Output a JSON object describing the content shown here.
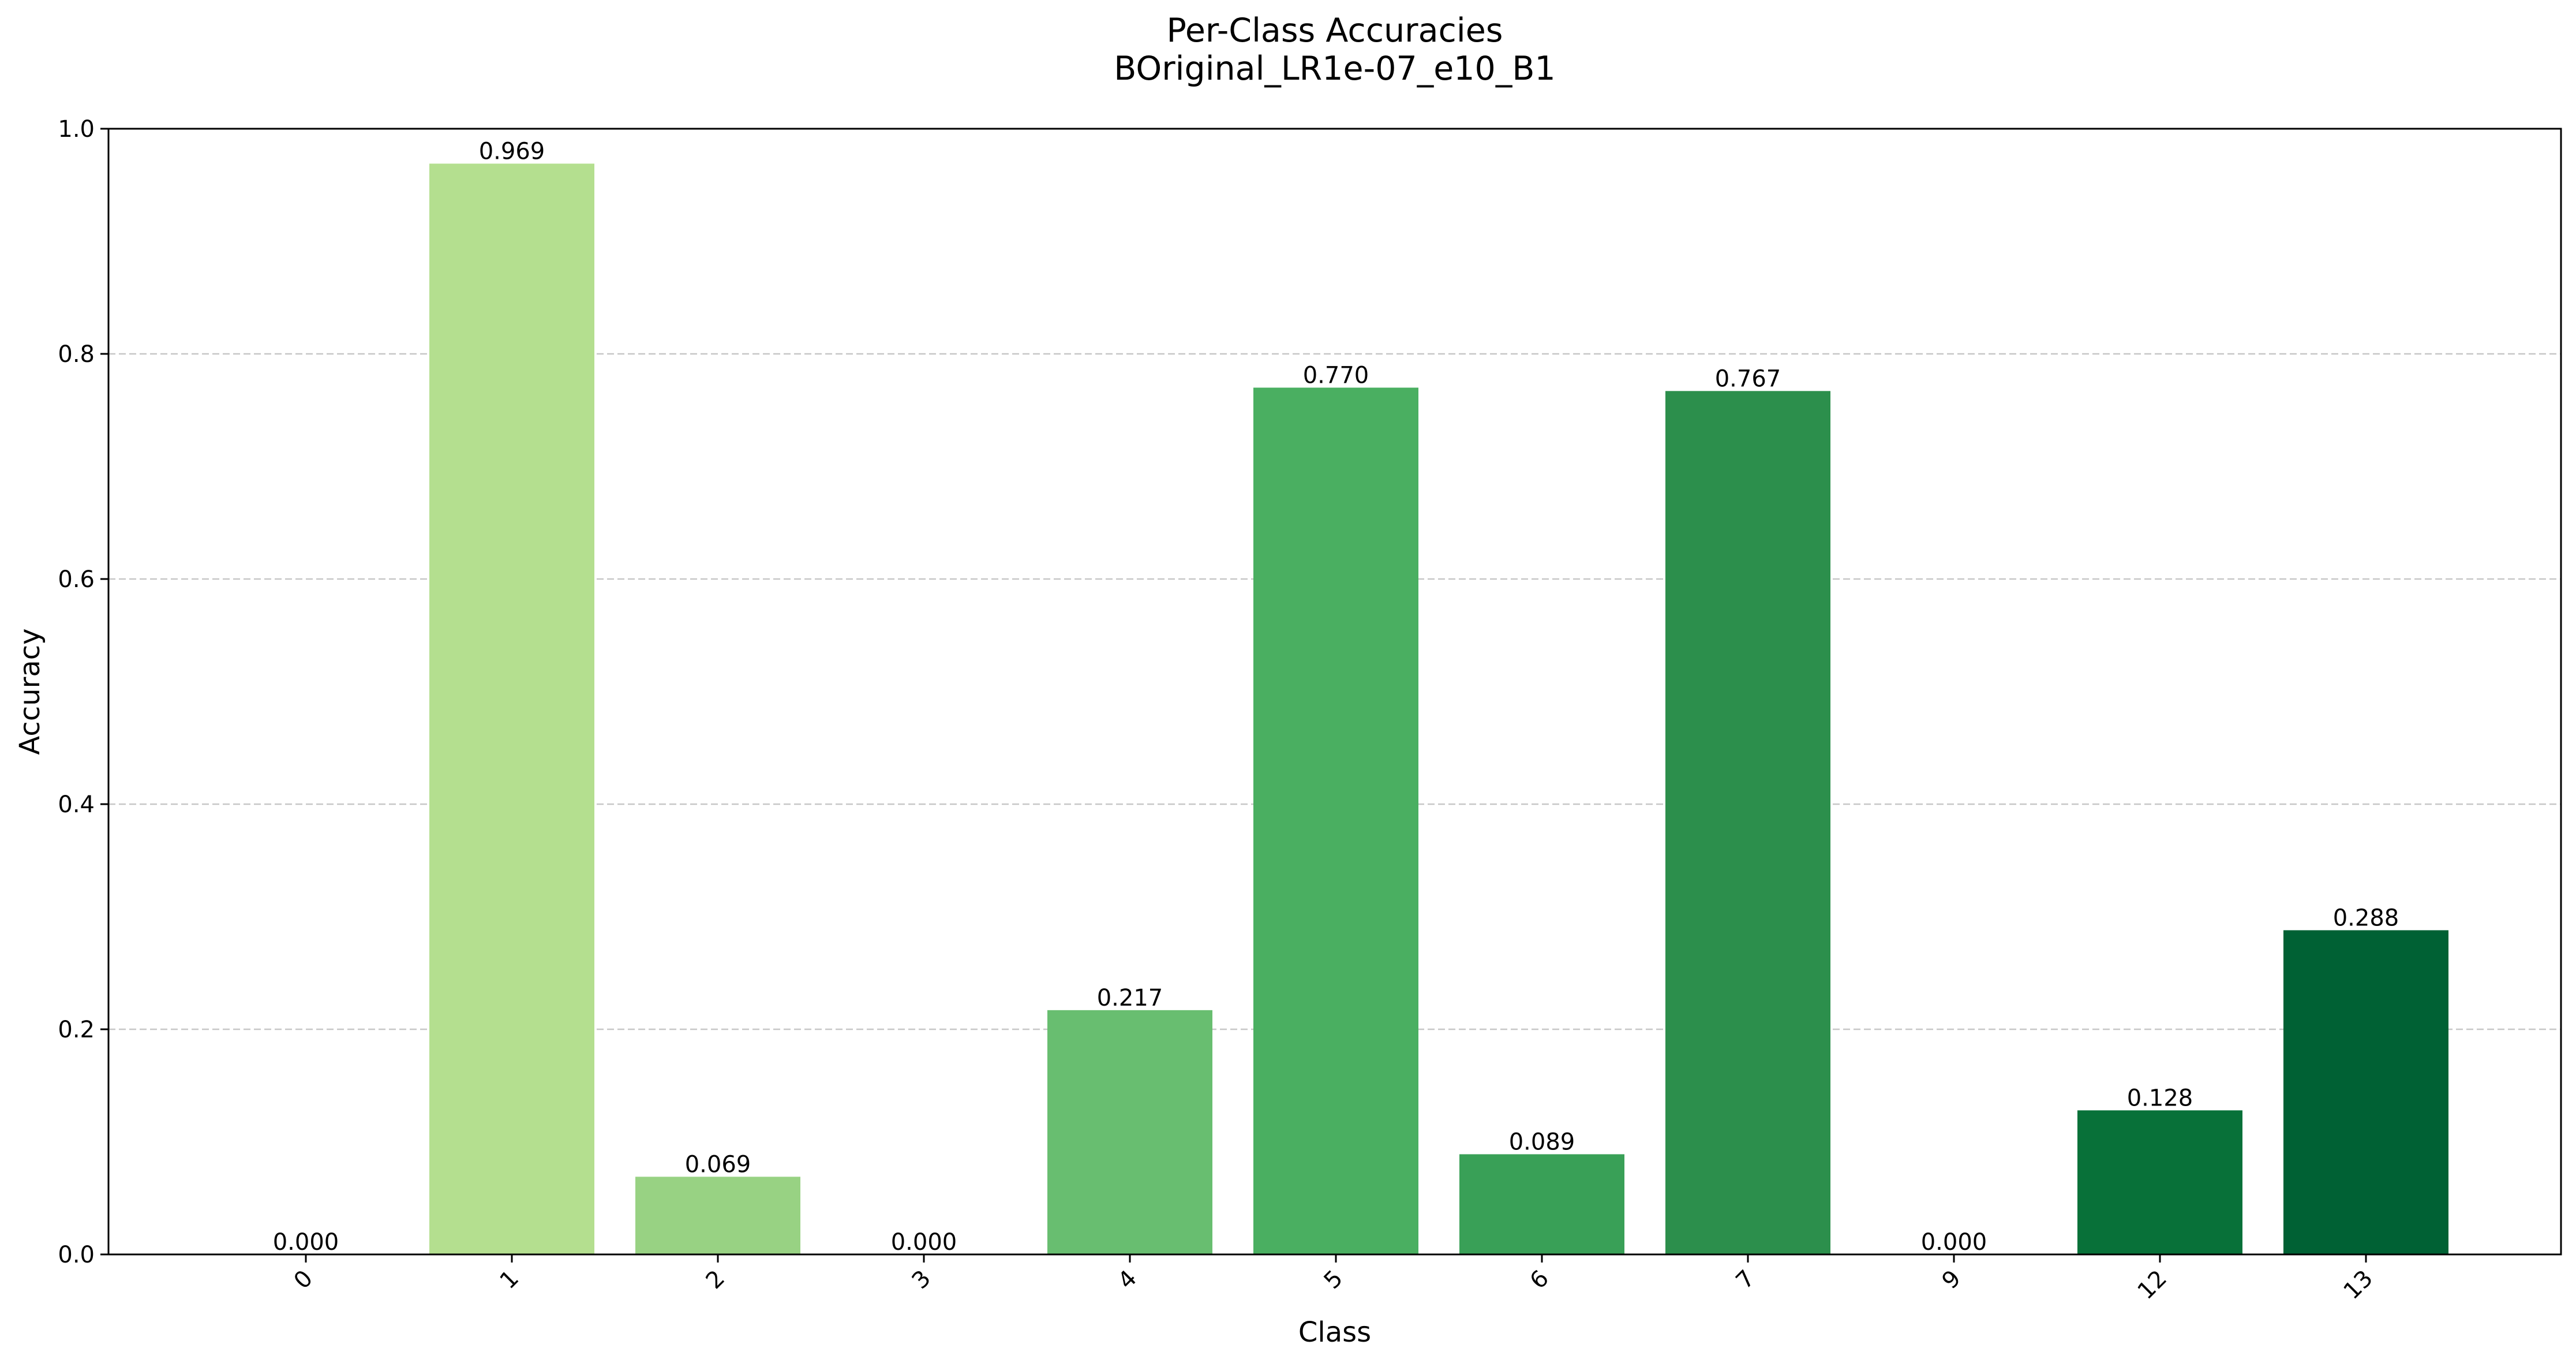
{
  "chart_data": {
    "type": "bar",
    "title": "Per-Class Accuracies",
    "subtitle": "BOriginal_LR1e-07_e10_B1",
    "xlabel": "Class",
    "ylabel": "Accuracy",
    "ylim": [
      0,
      1.0
    ],
    "yticks": [
      "0.0",
      "0.2",
      "0.4",
      "0.6",
      "0.8",
      "1.0"
    ],
    "grid": "y-dashed",
    "categories": [
      "0",
      "1",
      "2",
      "3",
      "4",
      "5",
      "6",
      "7",
      "9",
      "12",
      "13"
    ],
    "values": [
      0.0,
      0.969,
      0.069,
      0.0,
      0.217,
      0.77,
      0.089,
      0.767,
      0.0,
      0.128,
      0.288
    ],
    "data_labels": [
      "0.000",
      "0.969",
      "0.069",
      "0.000",
      "0.217",
      "0.770",
      "0.089",
      "0.767",
      "0.000",
      "0.128",
      "0.288"
    ],
    "colors": [
      "#d8efbb",
      "#b4df8f",
      "#98d283",
      "#80c97a",
      "#68be70",
      "#4aaf61",
      "#39a057",
      "#2c8f4c",
      "#16793f",
      "#087139",
      "#006134"
    ]
  }
}
